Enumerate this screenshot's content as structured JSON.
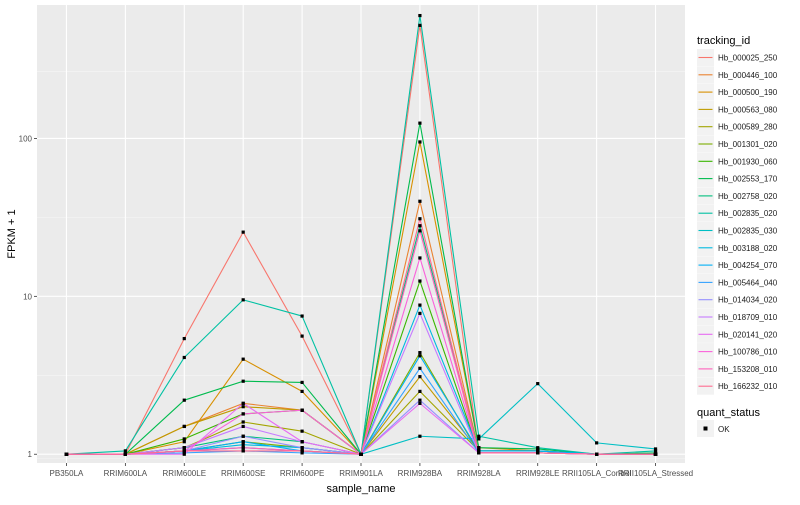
{
  "chart_data": {
    "type": "line",
    "xlabel": "sample_name",
    "ylabel": "FPKM + 1",
    "yscale": "log10",
    "ylim": [
      0.88,
      700
    ],
    "y_ticks": [
      1,
      10,
      100
    ],
    "y_tick_labels": [
      "1",
      "10",
      "100"
    ],
    "categories": [
      "PB350LA",
      "RRIM600LA",
      "RRIM600LE",
      "RRIM600SE",
      "RRIM600PE",
      "RRIM901LA",
      "RRIM928BA",
      "RRIM928LA",
      "RRIM928LE",
      "RRII105LA_Control",
      "RRII105LA_Stressed"
    ],
    "legend": {
      "title": "tracking_id",
      "position": "right",
      "status_title": "quant_status",
      "status_label": "OK"
    },
    "series": [
      {
        "name": "Hb_000025_250",
        "color": "#F8766D",
        "values": [
          1,
          1,
          5.4,
          25.5,
          5.6,
          1,
          520,
          1.05,
          1.05,
          1,
          1
        ]
      },
      {
        "name": "Hb_000446_100",
        "color": "#EA8331",
        "values": [
          1,
          1,
          1.5,
          2.1,
          1.9,
          1,
          40,
          1.05,
          1.05,
          1,
          1
        ]
      },
      {
        "name": "Hb_000500_190",
        "color": "#D89000",
        "values": [
          1,
          1,
          1.2,
          4.0,
          2.5,
          1,
          95,
          1.1,
          1.05,
          1,
          1
        ]
      },
      {
        "name": "Hb_000563_080",
        "color": "#C09B00",
        "values": [
          1,
          1,
          1.5,
          2.0,
          1.9,
          1,
          3.1,
          1.05,
          1.05,
          1,
          1
        ]
      },
      {
        "name": "Hb_000589_280",
        "color": "#A3A500",
        "values": [
          1,
          1,
          1.1,
          1.6,
          1.4,
          1,
          2.5,
          1.05,
          1.05,
          1,
          1
        ]
      },
      {
        "name": "Hb_001301_020",
        "color": "#7CAE00",
        "values": [
          1,
          1,
          1.05,
          1.2,
          1.1,
          1,
          4.4,
          1.02,
          1.02,
          1,
          1
        ]
      },
      {
        "name": "Hb_001930_060",
        "color": "#39B600",
        "values": [
          1,
          1,
          1.25,
          1.8,
          1.9,
          1,
          12.5,
          1.02,
          1.02,
          1,
          1
        ]
      },
      {
        "name": "Hb_002553_170",
        "color": "#00BB4E",
        "values": [
          1,
          1,
          2.2,
          2.9,
          2.85,
          1,
          125,
          1.1,
          1.08,
          1,
          1.02
        ]
      },
      {
        "name": "Hb_002758_020",
        "color": "#00BF7D",
        "values": [
          1,
          1,
          1.1,
          1.3,
          1.2,
          1,
          28,
          1.05,
          1.05,
          1,
          1
        ]
      },
      {
        "name": "Hb_002835_020",
        "color": "#00C1A3",
        "values": [
          1,
          1.05,
          4.1,
          9.5,
          7.5,
          1,
          600,
          1.3,
          1.1,
          1,
          1.05
        ]
      },
      {
        "name": "Hb_002835_030",
        "color": "#00BFC4",
        "values": [
          1,
          1,
          1.05,
          1.1,
          1.05,
          1,
          1.3,
          1.25,
          2.8,
          1.18,
          1.08
        ]
      },
      {
        "name": "Hb_003188_020",
        "color": "#00BAE0",
        "values": [
          1,
          1,
          1.05,
          1.15,
          1.1,
          1,
          8.8,
          1.05,
          1.05,
          1,
          1
        ]
      },
      {
        "name": "Hb_004254_070",
        "color": "#00B0F6",
        "values": [
          1,
          1,
          1.05,
          1.2,
          1.05,
          1,
          4.2,
          1.05,
          1.05,
          1,
          1
        ]
      },
      {
        "name": "Hb_005464_040",
        "color": "#35A2FF",
        "values": [
          1,
          1,
          1.02,
          1.05,
          1.02,
          1,
          3.5,
          1.02,
          1.02,
          1,
          1
        ]
      },
      {
        "name": "Hb_014034_020",
        "color": "#9590FF",
        "values": [
          1,
          1,
          1.05,
          1.3,
          1.1,
          1,
          2.2,
          1.02,
          1.02,
          1,
          1
        ]
      },
      {
        "name": "Hb_018709_010",
        "color": "#C77CFF",
        "values": [
          1,
          1,
          1.1,
          1.5,
          1.2,
          1,
          7.8,
          1.02,
          1.02,
          1,
          1
        ]
      },
      {
        "name": "Hb_020141_020",
        "color": "#E76BF3",
        "values": [
          1,
          1,
          1.0,
          2.1,
          1.2,
          1,
          2.1,
          1.02,
          1.02,
          1,
          1
        ]
      },
      {
        "name": "Hb_100786_010",
        "color": "#FA62DB",
        "values": [
          1,
          1,
          1.05,
          1.8,
          1.9,
          1,
          17.5,
          1.02,
          1.02,
          1,
          1
        ]
      },
      {
        "name": "Hb_153208_010",
        "color": "#FF62BC",
        "values": [
          1,
          1,
          1.05,
          1.1,
          1.05,
          1,
          26,
          1.02,
          1.02,
          1,
          1
        ]
      },
      {
        "name": "Hb_166232_010",
        "color": "#FF6C91",
        "values": [
          1,
          1,
          1.05,
          1.05,
          1.05,
          1,
          31,
          1.02,
          1.02,
          1,
          1
        ]
      }
    ]
  }
}
